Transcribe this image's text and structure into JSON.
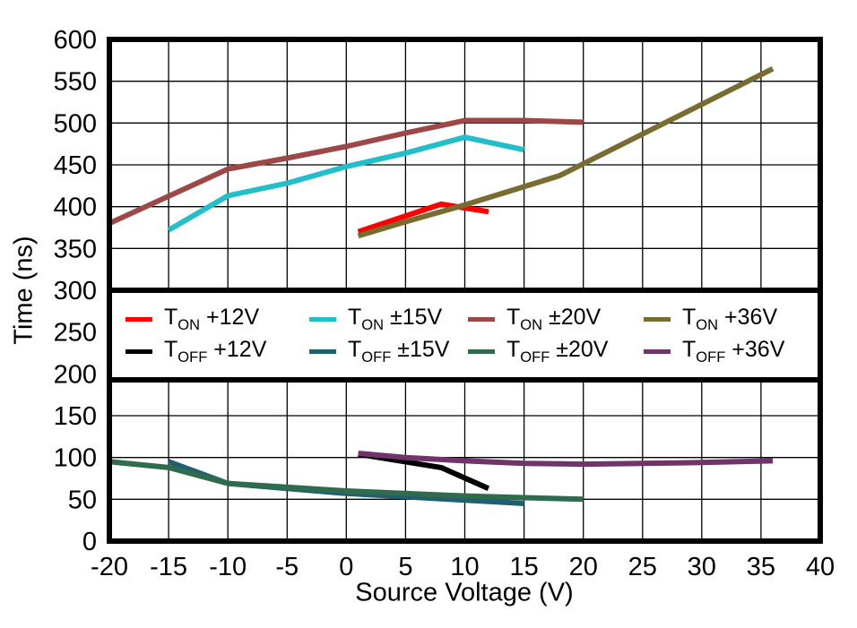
{
  "figure": {
    "background": "#FFFFFF",
    "frame_color": "#000000"
  },
  "chart_data": {
    "type": "line",
    "title": "",
    "xlabel": "Source Voltage (V)",
    "ylabel": "Time (ns)",
    "xlim": [
      -20,
      40
    ],
    "ylim": [
      0,
      600
    ],
    "xticks": [
      -20,
      -15,
      -10,
      -5,
      0,
      5,
      10,
      15,
      20,
      25,
      30,
      35,
      40
    ],
    "yticks": [
      0,
      50,
      100,
      150,
      200,
      250,
      300,
      350,
      400,
      450,
      500,
      550,
      600
    ],
    "grid": true,
    "legend_position": "middle-band-full-width",
    "draw_order": [
      2,
      1,
      0,
      3,
      5,
      6,
      4,
      7
    ],
    "series": [
      {
        "id": "ton-12v",
        "name": "T_ON +12V",
        "color": "#FF0000",
        "points": [
          [
            1,
            370
          ],
          [
            8,
            403
          ],
          [
            12,
            394
          ]
        ]
      },
      {
        "id": "ton-15v",
        "name": "T_ON ±15V",
        "color": "#22BECB",
        "points": [
          [
            -15,
            372
          ],
          [
            -10,
            413
          ],
          [
            -5,
            428
          ],
          [
            0,
            448
          ],
          [
            5,
            464
          ],
          [
            10,
            483
          ],
          [
            15,
            468
          ]
        ]
      },
      {
        "id": "ton-20v",
        "name": "T_ON ±20V",
        "color": "#9E4747",
        "points": [
          [
            -20,
            380
          ],
          [
            -10,
            445
          ],
          [
            -5,
            458
          ],
          [
            0,
            472
          ],
          [
            5,
            488
          ],
          [
            10,
            503
          ],
          [
            15,
            503
          ],
          [
            20,
            501
          ]
        ]
      },
      {
        "id": "ton-36v",
        "name": "T_ON +36V",
        "color": "#786C31",
        "points": [
          [
            1,
            365
          ],
          [
            5,
            382
          ],
          [
            10,
            402
          ],
          [
            18,
            437
          ],
          [
            36,
            565
          ]
        ]
      },
      {
        "id": "toff-12v",
        "name": "T_OFF +12V",
        "color": "#000000",
        "points": [
          [
            1,
            104
          ],
          [
            8,
            88
          ],
          [
            12,
            63
          ]
        ]
      },
      {
        "id": "toff-15v",
        "name": "T_OFF ±15V",
        "color": "#1F6070",
        "points": [
          [
            -15,
            95
          ],
          [
            -10,
            69
          ],
          [
            0,
            57
          ],
          [
            10,
            49
          ],
          [
            15,
            45
          ]
        ]
      },
      {
        "id": "toff-20v",
        "name": "T_OFF ±20V",
        "color": "#2F6B4C",
        "points": [
          [
            -20,
            95
          ],
          [
            -15,
            88
          ],
          [
            -10,
            69
          ],
          [
            0,
            60
          ],
          [
            10,
            54
          ],
          [
            15,
            52
          ],
          [
            20,
            50
          ]
        ]
      },
      {
        "id": "toff-36v",
        "name": "T_OFF +36V",
        "color": "#70336B",
        "points": [
          [
            1,
            105
          ],
          [
            5,
            100
          ],
          [
            10,
            96
          ],
          [
            15,
            93
          ],
          [
            20,
            92
          ],
          [
            25,
            93
          ],
          [
            30,
            94
          ],
          [
            36,
            96
          ]
        ]
      }
    ]
  },
  "legend": {
    "items": [
      {
        "main": "T",
        "sub": "ON",
        "value": "+12V",
        "color": "#FF0000"
      },
      {
        "main": "T",
        "sub": "ON",
        "value": "±15V",
        "color": "#22BECB"
      },
      {
        "main": "T",
        "sub": "ON",
        "value": "±20V",
        "color": "#9E4747"
      },
      {
        "main": "T",
        "sub": "ON",
        "value": "+36V",
        "color": "#786C31"
      },
      {
        "main": "T",
        "sub": "OFF",
        "value": "+12V",
        "color": "#000000"
      },
      {
        "main": "T",
        "sub": "OFF",
        "value": "±15V",
        "color": "#1F6070"
      },
      {
        "main": "T",
        "sub": "OFF",
        "value": "±20V",
        "color": "#2F6B4C"
      },
      {
        "main": "T",
        "sub": "OFF",
        "value": "+36V",
        "color": "#70336B"
      }
    ]
  }
}
